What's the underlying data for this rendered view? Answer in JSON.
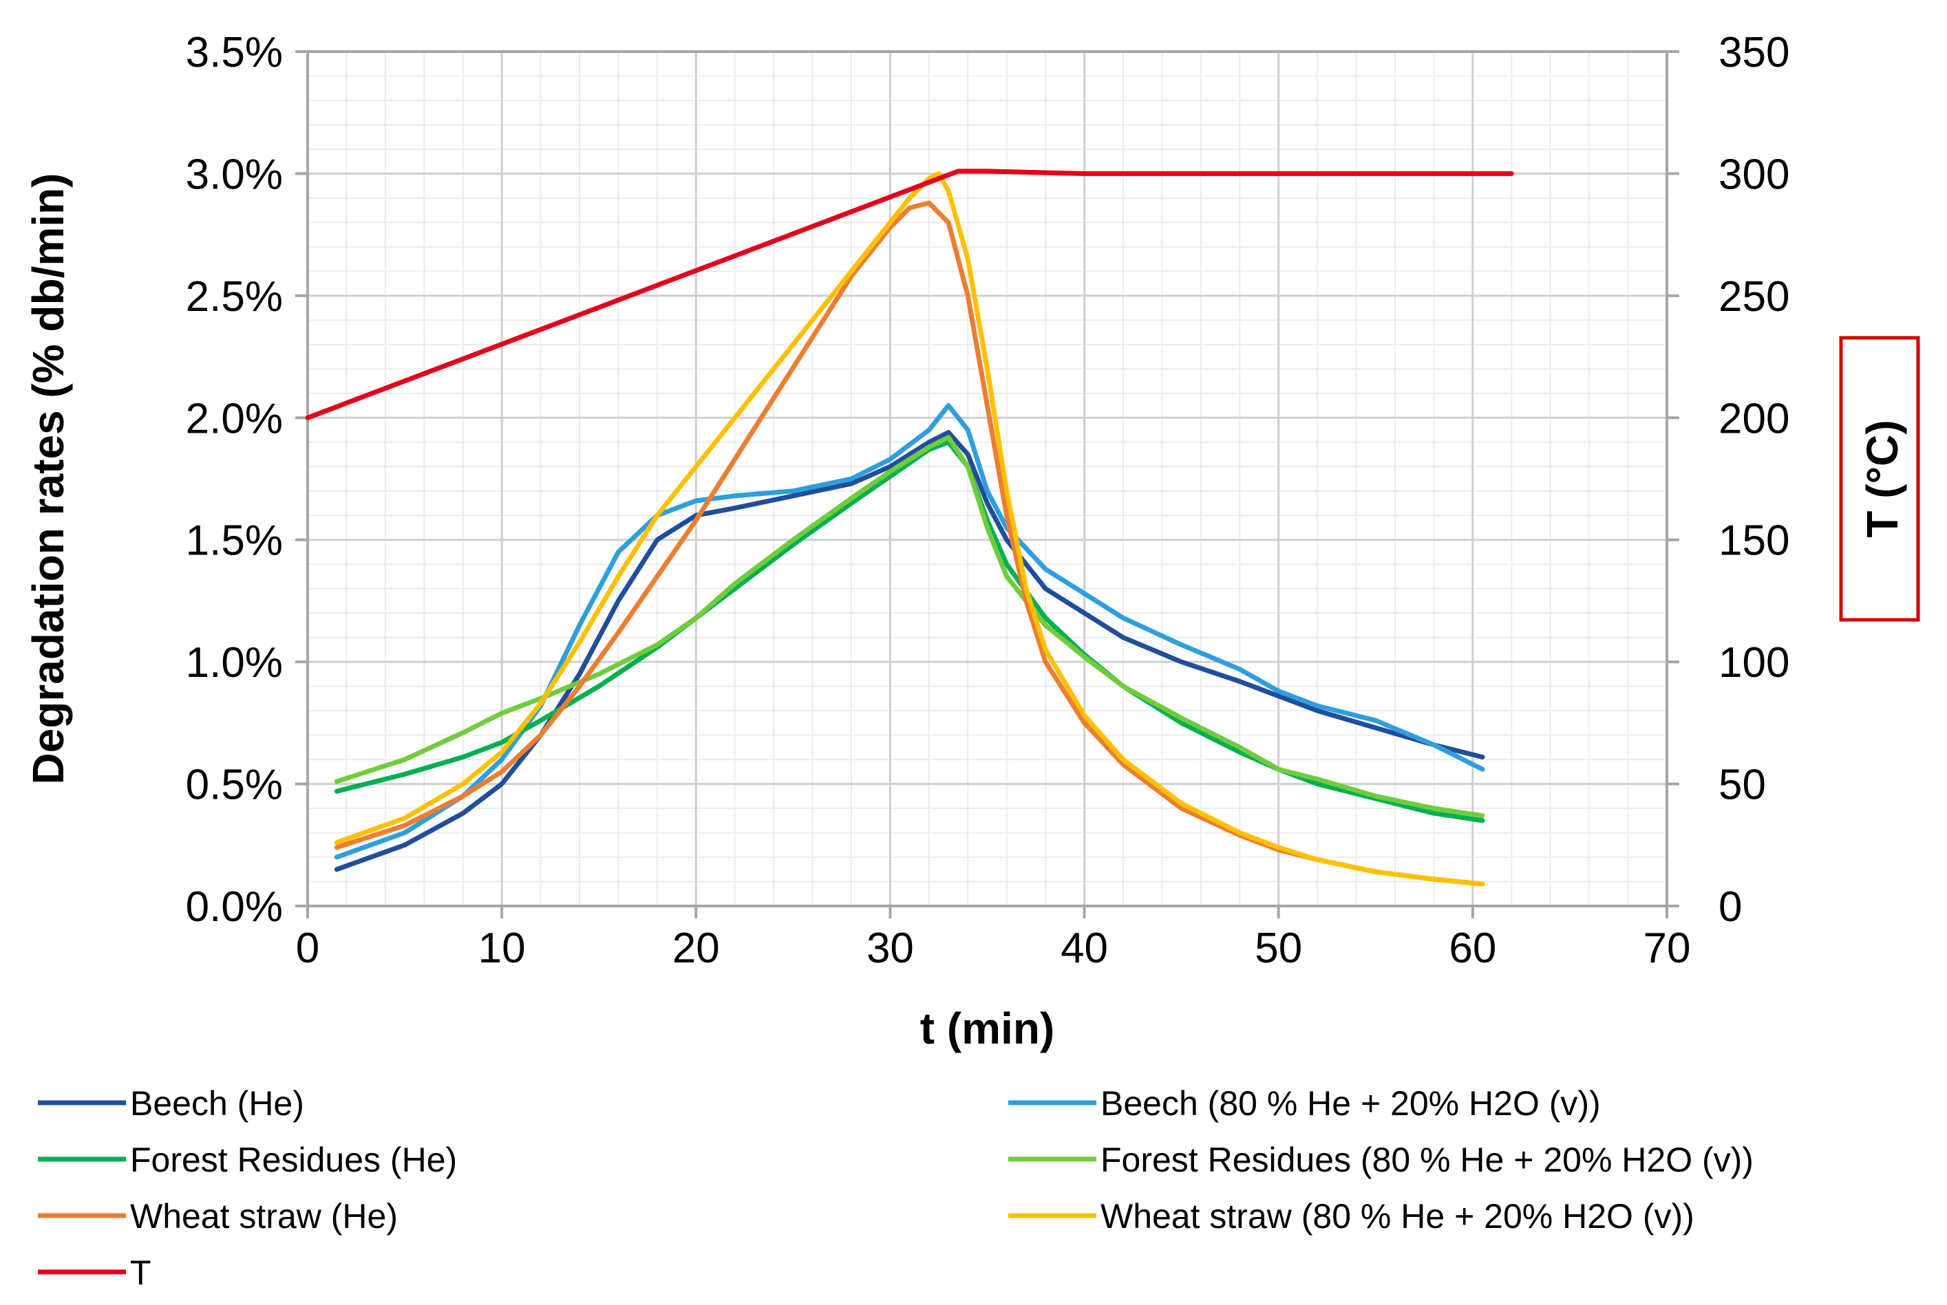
{
  "chart_data": {
    "type": "line",
    "xlabel": "t (min)",
    "ylabel": "Degradation rates (% db/min)",
    "y2label": "T (°C)",
    "xlim": [
      0,
      70
    ],
    "ylim": [
      0,
      3.5
    ],
    "y2lim": [
      0,
      350
    ],
    "xticks": [
      "0",
      "10",
      "20",
      "30",
      "40",
      "50",
      "60",
      "70"
    ],
    "yticks": [
      "0.0%",
      "0.5%",
      "1.0%",
      "1.5%",
      "2.0%",
      "2.5%",
      "3.0%",
      "3.5%"
    ],
    "y2ticks": [
      "0",
      "50",
      "100",
      "150",
      "200",
      "250",
      "300",
      "350"
    ],
    "grid": true,
    "legend_position": "bottom",
    "series": [
      {
        "name": "Beech (He)",
        "axis": "left",
        "color": "#1f4e9c",
        "points": [
          [
            1.5,
            0.15
          ],
          [
            5,
            0.25
          ],
          [
            8,
            0.38
          ],
          [
            10,
            0.5
          ],
          [
            12,
            0.7
          ],
          [
            14,
            0.95
          ],
          [
            16,
            1.25
          ],
          [
            18,
            1.5
          ],
          [
            20,
            1.6
          ],
          [
            22,
            1.63
          ],
          [
            25,
            1.68
          ],
          [
            28,
            1.73
          ],
          [
            30,
            1.8
          ],
          [
            32,
            1.9
          ],
          [
            33,
            1.94
          ],
          [
            34,
            1.85
          ],
          [
            35,
            1.65
          ],
          [
            36,
            1.5
          ],
          [
            38,
            1.3
          ],
          [
            40,
            1.2
          ],
          [
            42,
            1.1
          ],
          [
            45,
            1.0
          ],
          [
            48,
            0.92
          ],
          [
            50,
            0.86
          ],
          [
            52,
            0.8
          ],
          [
            55,
            0.73
          ],
          [
            58,
            0.66
          ],
          [
            60.5,
            0.61
          ]
        ]
      },
      {
        "name": "Beech (80 % He + 20% H2O (v))",
        "axis": "left",
        "color": "#2e9fdc",
        "points": [
          [
            1.5,
            0.2
          ],
          [
            5,
            0.3
          ],
          [
            8,
            0.45
          ],
          [
            10,
            0.6
          ],
          [
            12,
            0.82
          ],
          [
            14,
            1.15
          ],
          [
            16,
            1.45
          ],
          [
            18,
            1.6
          ],
          [
            20,
            1.66
          ],
          [
            22,
            1.68
          ],
          [
            25,
            1.7
          ],
          [
            28,
            1.75
          ],
          [
            30,
            1.83
          ],
          [
            32,
            1.95
          ],
          [
            33,
            2.05
          ],
          [
            34,
            1.95
          ],
          [
            35,
            1.7
          ],
          [
            36,
            1.55
          ],
          [
            38,
            1.38
          ],
          [
            40,
            1.28
          ],
          [
            42,
            1.18
          ],
          [
            45,
            1.07
          ],
          [
            48,
            0.97
          ],
          [
            50,
            0.88
          ],
          [
            52,
            0.82
          ],
          [
            55,
            0.76
          ],
          [
            58,
            0.66
          ],
          [
            60.5,
            0.56
          ]
        ]
      },
      {
        "name": "Forest Residues (He)",
        "axis": "left",
        "color": "#00b050",
        "points": [
          [
            1.5,
            0.47
          ],
          [
            5,
            0.54
          ],
          [
            8,
            0.61
          ],
          [
            10,
            0.67
          ],
          [
            12,
            0.76
          ],
          [
            15,
            0.9
          ],
          [
            18,
            1.06
          ],
          [
            20,
            1.18
          ],
          [
            22,
            1.3
          ],
          [
            25,
            1.48
          ],
          [
            28,
            1.65
          ],
          [
            30,
            1.76
          ],
          [
            32,
            1.87
          ],
          [
            33,
            1.9
          ],
          [
            34,
            1.8
          ],
          [
            35,
            1.58
          ],
          [
            36,
            1.4
          ],
          [
            38,
            1.18
          ],
          [
            40,
            1.03
          ],
          [
            42,
            0.9
          ],
          [
            45,
            0.75
          ],
          [
            48,
            0.63
          ],
          [
            50,
            0.56
          ],
          [
            52,
            0.5
          ],
          [
            55,
            0.44
          ],
          [
            58,
            0.38
          ],
          [
            60.5,
            0.35
          ]
        ]
      },
      {
        "name": "Forest Residues (80 % He + 20% H2O (v))",
        "axis": "left",
        "color": "#70cc3c",
        "points": [
          [
            1.5,
            0.51
          ],
          [
            5,
            0.6
          ],
          [
            8,
            0.71
          ],
          [
            10,
            0.79
          ],
          [
            12,
            0.85
          ],
          [
            15,
            0.95
          ],
          [
            18,
            1.07
          ],
          [
            20,
            1.18
          ],
          [
            22,
            1.32
          ],
          [
            25,
            1.5
          ],
          [
            28,
            1.67
          ],
          [
            30,
            1.78
          ],
          [
            32,
            1.88
          ],
          [
            33,
            1.92
          ],
          [
            34,
            1.8
          ],
          [
            35,
            1.55
          ],
          [
            36,
            1.35
          ],
          [
            38,
            1.15
          ],
          [
            40,
            1.02
          ],
          [
            42,
            0.9
          ],
          [
            45,
            0.77
          ],
          [
            48,
            0.65
          ],
          [
            50,
            0.56
          ],
          [
            52,
            0.52
          ],
          [
            55,
            0.45
          ],
          [
            58,
            0.4
          ],
          [
            60.5,
            0.37
          ]
        ]
      },
      {
        "name": "Wheat straw (He)",
        "axis": "left",
        "color": "#ed7d31",
        "points": [
          [
            1.5,
            0.24
          ],
          [
            5,
            0.33
          ],
          [
            8,
            0.45
          ],
          [
            10,
            0.55
          ],
          [
            12,
            0.7
          ],
          [
            14,
            0.9
          ],
          [
            16,
            1.12
          ],
          [
            18,
            1.35
          ],
          [
            20,
            1.58
          ],
          [
            22,
            1.83
          ],
          [
            24,
            2.08
          ],
          [
            26,
            2.33
          ],
          [
            28,
            2.58
          ],
          [
            30,
            2.78
          ],
          [
            31,
            2.86
          ],
          [
            32,
            2.88
          ],
          [
            33,
            2.8
          ],
          [
            34,
            2.5
          ],
          [
            35,
            2.05
          ],
          [
            36,
            1.6
          ],
          [
            37,
            1.25
          ],
          [
            38,
            1.0
          ],
          [
            40,
            0.75
          ],
          [
            42,
            0.58
          ],
          [
            45,
            0.4
          ],
          [
            48,
            0.29
          ],
          [
            50,
            0.23
          ],
          [
            52,
            0.19
          ],
          [
            55,
            0.14
          ],
          [
            58,
            0.11
          ],
          [
            60.5,
            0.09
          ]
        ]
      },
      {
        "name": "Wheat straw (80 % He + 20% H2O (v))",
        "axis": "left",
        "color": "#ffc000",
        "points": [
          [
            1.5,
            0.26
          ],
          [
            5,
            0.36
          ],
          [
            8,
            0.5
          ],
          [
            10,
            0.63
          ],
          [
            12,
            0.83
          ],
          [
            14,
            1.08
          ],
          [
            16,
            1.35
          ],
          [
            18,
            1.6
          ],
          [
            20,
            1.8
          ],
          [
            22,
            2.0
          ],
          [
            24,
            2.2
          ],
          [
            26,
            2.4
          ],
          [
            28,
            2.6
          ],
          [
            30,
            2.8
          ],
          [
            31,
            2.9
          ],
          [
            32,
            2.98
          ],
          [
            32.5,
            3.0
          ],
          [
            33,
            2.93
          ],
          [
            34,
            2.65
          ],
          [
            35,
            2.2
          ],
          [
            36,
            1.7
          ],
          [
            37,
            1.3
          ],
          [
            38,
            1.05
          ],
          [
            40,
            0.78
          ],
          [
            42,
            0.6
          ],
          [
            45,
            0.42
          ],
          [
            48,
            0.3
          ],
          [
            50,
            0.24
          ],
          [
            52,
            0.19
          ],
          [
            55,
            0.14
          ],
          [
            58,
            0.11
          ],
          [
            60.5,
            0.09
          ]
        ]
      },
      {
        "name": "T",
        "axis": "right",
        "color": "#e3001b",
        "points": [
          [
            0,
            200
          ],
          [
            33.5,
            301
          ],
          [
            35,
            301
          ],
          [
            40,
            300
          ],
          [
            50,
            300
          ],
          [
            60,
            300
          ],
          [
            62,
            300
          ]
        ]
      }
    ]
  }
}
